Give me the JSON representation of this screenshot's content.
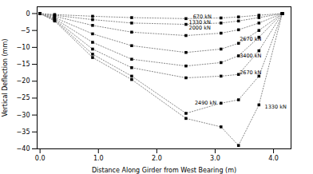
{
  "chart_data": {
    "type": "line",
    "xlabel": "Distance Along Girder from West Bearing (m)",
    "ylabel": "Vertical Deflection (mm)",
    "xlim": [
      -0.05,
      4.3
    ],
    "ylim": [
      -40,
      2
    ],
    "xticks": [
      0,
      1,
      2,
      3,
      4
    ],
    "yticks": [
      0,
      -5,
      -10,
      -15,
      -20,
      -25,
      -30,
      -35,
      -40
    ],
    "grid": false,
    "color": "#888888",
    "marker": "square",
    "line_style": "dotted",
    "x": [
      0,
      0.25,
      0.9,
      1.57,
      2.5,
      3.1,
      3.4,
      3.75,
      4.15
    ],
    "series": [
      {
        "values": [
          0,
          -0.3,
          -0.8,
          -1.2,
          -1.5,
          -1.3,
          -1.0,
          -0.5,
          0
        ]
      },
      {
        "values": [
          0,
          -0.5,
          -1.8,
          -2.8,
          -3.2,
          -2.8,
          -2.2,
          -1.2,
          0
        ]
      },
      {
        "values": [
          0,
          -0.8,
          -3.5,
          -5.5,
          -6.5,
          -5.8,
          -4.8,
          -2.8,
          0
        ]
      },
      {
        "values": [
          0,
          -1.2,
          -6.0,
          -9.5,
          -11.5,
          -10.5,
          -8.8,
          -5.0,
          0
        ]
      },
      {
        "values": [
          0,
          -1.5,
          -8.5,
          -13.5,
          -15.5,
          -14.5,
          -12.5,
          -7.0,
          0
        ]
      },
      {
        "values": [
          0,
          -1.8,
          -10.5,
          -16.0,
          -19.0,
          -18.5,
          -18.0,
          -11.0,
          0
        ]
      },
      {
        "values": [
          0,
          -2.0,
          -12.0,
          -18.5,
          -29.5,
          -26.5,
          -25.5,
          -18.5,
          0
        ]
      },
      {
        "values": [
          0,
          -2.2,
          -13.0,
          -19.5,
          -31.0,
          -33.5,
          -39.0,
          -27.0,
          0
        ]
      }
    ],
    "annotations": [
      {
        "text": "670 kN",
        "x": 2.62,
        "y": -1.0
      },
      {
        "text": "1330 kN",
        "x": 2.55,
        "y": -2.5
      },
      {
        "text": "2000 kN",
        "x": 2.55,
        "y": -4.2
      },
      {
        "text": "2670 kN",
        "x": 3.42,
        "y": -7.5
      },
      {
        "text": "3400 kN",
        "x": 3.42,
        "y": -12.5
      },
      {
        "text": "2670 kN",
        "x": 3.42,
        "y": -17.5
      },
      {
        "text": "2490 kN",
        "x": 2.65,
        "y": -26.5
      },
      {
        "text": "1330 kN",
        "x": 3.85,
        "y": -27.5
      }
    ]
  }
}
